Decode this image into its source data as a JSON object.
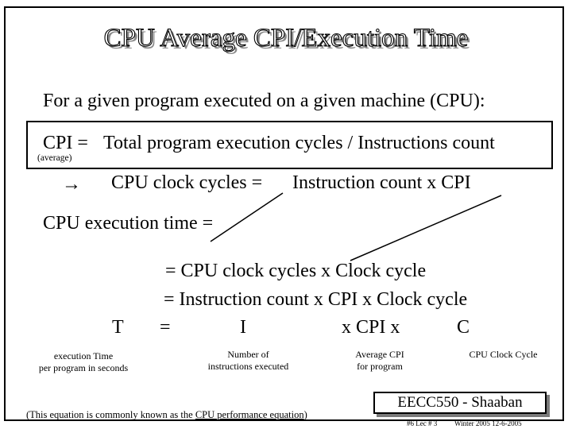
{
  "title": "CPU Average CPI/Execution Time",
  "intro": "For a given program executed on a given machine (CPU):",
  "formula": {
    "left": "CPI =",
    "right": "Total program execution cycles / Instructions count",
    "subscript": "(average)"
  },
  "implies": {
    "arrow": "→",
    "lhs": "CPU clock cycles =",
    "rhs": "Instruction count  x  CPI"
  },
  "exec_time_label": "CPU execution time  =",
  "lines": {
    "line1": "= CPU clock cycles  x  Clock cycle",
    "line2": "= Instruction count  x  CPI  x  Clock cycle"
  },
  "symbols": {
    "T": "T",
    "eq": "=",
    "I": "I",
    "xcpi": "x  CPI  x",
    "C": "C"
  },
  "notes": {
    "T_note_1": "execution Time",
    "T_note_2": "per program in seconds",
    "I_note_1": "Number of",
    "I_note_2": "instructions executed",
    "CPI_note_1": "Average CPI",
    "CPI_note_2": "for program",
    "C_note": "CPU Clock Cycle"
  },
  "footer": {
    "equation_prefix": "(This equation is commonly known as the ",
    "equation_link": "CPU performance equation",
    "equation_suffix": ")",
    "badge": "EECC550 - Shaaban",
    "meta_1": "#6   Lec # 3",
    "meta_2": "Winter 2005   12-6-2005"
  }
}
